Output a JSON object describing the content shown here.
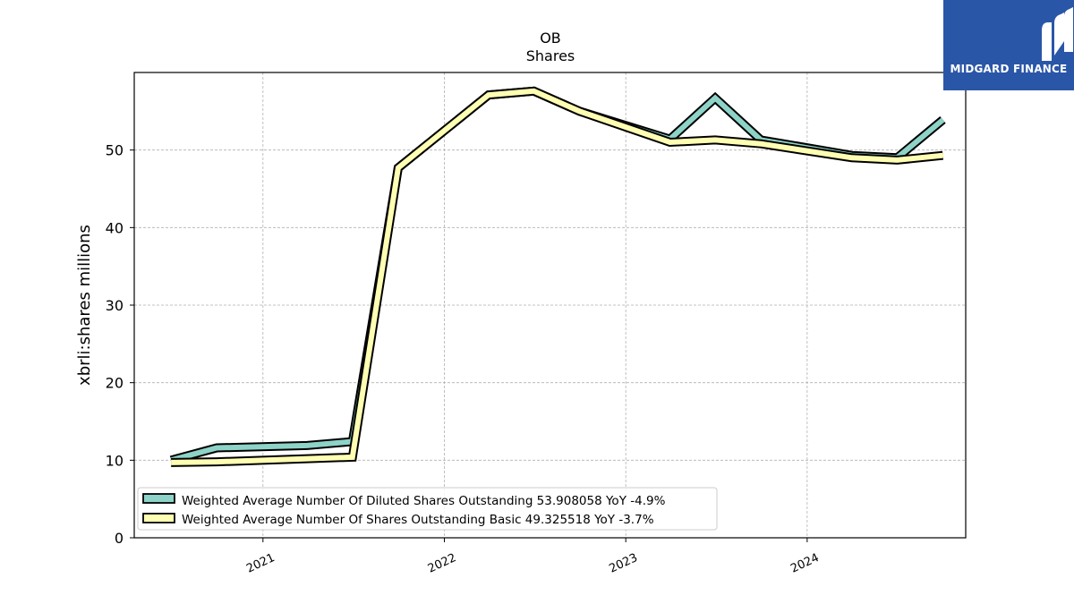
{
  "brand": {
    "name": "MIDGARD FINANCE",
    "logo_color": "#2a56a8"
  },
  "chart_data": {
    "type": "line",
    "title": "OB",
    "subtitle": "Shares",
    "xlabel": "",
    "ylabel": "xbrli:shares millions",
    "ylim": [
      0,
      60
    ],
    "yticks": [
      0,
      10,
      20,
      30,
      40,
      50
    ],
    "xticks": [
      "2021",
      "2022",
      "2023",
      "2024"
    ],
    "xlim": [
      "2020-04-17",
      "2024-11-15"
    ],
    "grid": true,
    "legend_position": "bottom-left",
    "x": [
      "2020-06-30",
      "2020-09-30",
      "2021-03-31",
      "2021-06-30",
      "2021-09-30",
      "2022-03-31",
      "2022-06-30",
      "2022-09-30",
      "2023-03-31",
      "2023-06-30",
      "2023-09-30",
      "2024-03-31",
      "2024-06-30",
      "2024-09-30"
    ],
    "series": [
      {
        "name": "Weighted Average Number Of Diluted Shares Outstanding",
        "legend_label": "Weighted Average Number Of Diluted Shares Outstanding  53.908058 YoY -4.9%",
        "color": "#8dd3c7",
        "values": [
          10.0,
          11.6,
          11.9,
          12.4,
          47.7,
          57.1,
          57.6,
          55.0,
          51.4,
          56.7,
          51.3,
          49.3,
          49.0,
          53.9
        ]
      },
      {
        "name": "Weighted Average Number Of Shares Outstanding Basic",
        "legend_label": "Weighted Average Number Of Shares Outstanding Basic  49.325518 YoY -3.7%",
        "color": "#ffffb3",
        "values": [
          9.7,
          9.8,
          10.2,
          10.4,
          47.7,
          57.1,
          57.6,
          55.0,
          51.0,
          51.3,
          50.8,
          49.0,
          48.7,
          49.3
        ]
      }
    ]
  }
}
